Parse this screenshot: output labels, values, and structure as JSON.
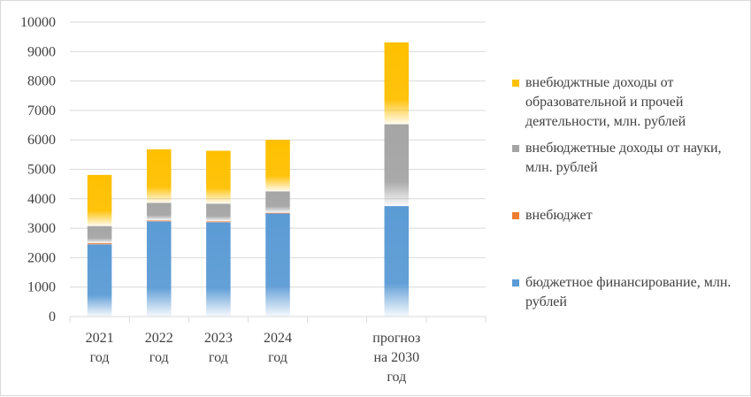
{
  "chart_data": {
    "type": "bar",
    "stacked": true,
    "categories": [
      [
        "2021",
        "год"
      ],
      [
        "2022",
        "год"
      ],
      [
        "2023",
        "год"
      ],
      [
        "2024",
        "год"
      ],
      [
        "",
        ""
      ],
      [
        "прогноз",
        "на 2030",
        "год"
      ],
      [
        "",
        ""
      ]
    ],
    "series": [
      {
        "name": "бюджетное финансирование, млн. рублей",
        "color": "#5b9bd5",
        "values": [
          2450,
          3230,
          3200,
          3500,
          0,
          3750,
          0
        ]
      },
      {
        "name": "внебюджет",
        "color": "#ed7d31",
        "values": [
          40,
          30,
          30,
          20,
          0,
          0,
          0
        ]
      },
      {
        "name": "внебюджетные доходы от науки, млн. рублей",
        "color": "#a5a5a5",
        "values": [
          580,
          600,
          600,
          730,
          0,
          2780,
          0
        ]
      },
      {
        "name": "внебюджтные доходы от образовательной и прочей деятельности, млн. рублей",
        "color": "#ffc000",
        "values": [
          1740,
          1820,
          1800,
          1750,
          0,
          2780,
          0
        ]
      }
    ],
    "yticks": [
      "0",
      "1000",
      "2000",
      "3000",
      "4000",
      "5000",
      "6000",
      "7000",
      "8000",
      "9000",
      "10000"
    ],
    "ylim": [
      0,
      10000
    ],
    "grid": true,
    "legend_position": "right"
  }
}
